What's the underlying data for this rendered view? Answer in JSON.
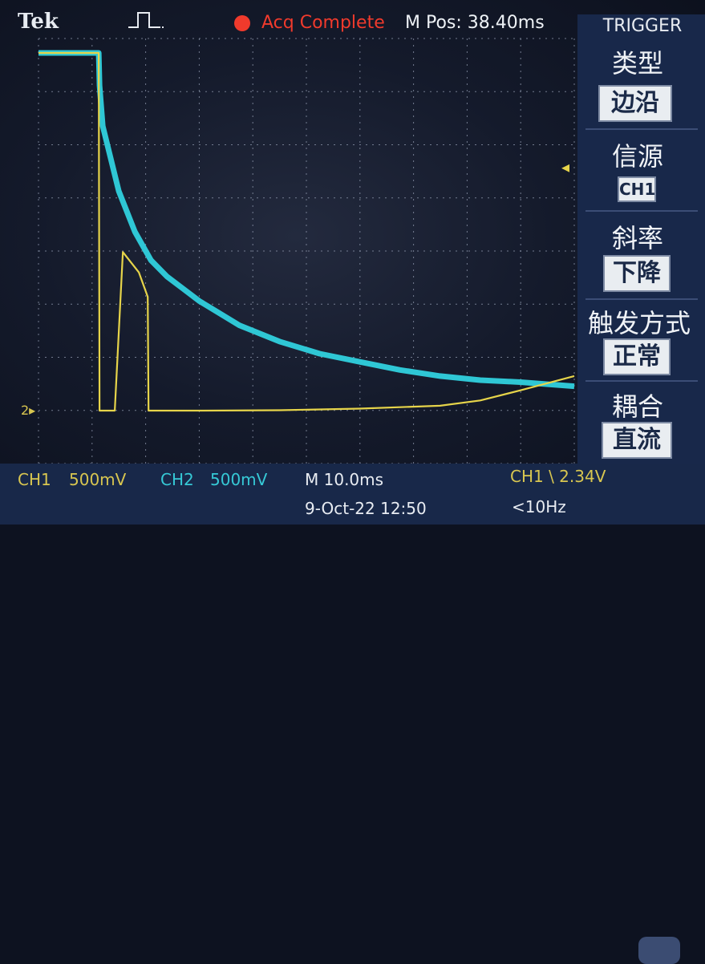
{
  "header": {
    "brand": "Tek",
    "trigger_icon": "pulse-edge-icon",
    "status": "Acq Complete",
    "status_color": "#f03a2c",
    "m_pos": "M Pos: 38.40ms"
  },
  "menu": {
    "title": "TRIGGER",
    "items": [
      {
        "label": "类型",
        "value": "边沿"
      },
      {
        "label": "信源",
        "value": "CH1"
      },
      {
        "label": "斜率",
        "value": "下降"
      },
      {
        "label": "触发方式",
        "value": "正常"
      },
      {
        "label": "耦合",
        "value": "直流"
      }
    ]
  },
  "footer": {
    "ch1": "CH1",
    "ch1_scale": "500mV",
    "ch2": "CH2",
    "ch2_scale": "500mV",
    "timebase": "M 10.0ms",
    "trigger_readout": "CH1 \\ 2.34V",
    "date": "9-Oct-22 12:50",
    "frequency": "<10Hz"
  },
  "markers": {
    "trigger_level": "◂",
    "ch_ground": "2▸"
  },
  "colors": {
    "ch1": "#e6d44a",
    "ch2": "#2fc7d5",
    "grid": "#8a93a8"
  },
  "chart_data": {
    "type": "line",
    "series": [
      {
        "x": [
          0,
          7.5,
          7.6,
          8,
          10,
          12,
          14,
          16,
          18,
          20,
          25,
          30,
          35,
          40,
          45,
          50,
          55,
          60,
          66.7
        ],
        "y": [
          8.8,
          8.8,
          8.0,
          7.0,
          5.4,
          4.4,
          3.7,
          3.3,
          3.0,
          2.7,
          2.1,
          1.7,
          1.4,
          1.2,
          1.0,
          0.85,
          0.75,
          0.7,
          0.6
        ]
      },
      {
        "x": [
          0,
          7.5,
          7.6,
          9.5,
          10.5,
          12.5,
          13.6,
          13.7,
          20,
          30,
          40,
          50,
          55,
          60,
          66.7
        ],
        "y": [
          8.8,
          8.8,
          0,
          0,
          3.9,
          3.4,
          2.8,
          0,
          0,
          0.01,
          0.05,
          0.12,
          0.25,
          0.5,
          0.85
        ]
      }
    ],
    "xlim": [
      0,
      66.7
    ],
    "ylim": [
      0,
      8.8
    ]
  }
}
